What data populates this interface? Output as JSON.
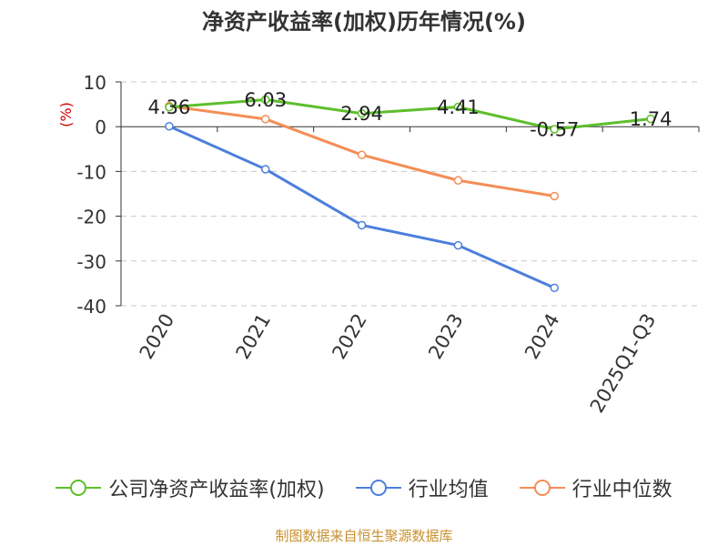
{
  "chart_data": {
    "type": "line",
    "title": "净资产收益率(加权)历年情况(%)",
    "ylabel": "(%)",
    "xlabel": "",
    "categories": [
      "2020",
      "2021",
      "2022",
      "2023",
      "2024",
      "2025Q1-Q3"
    ],
    "ylim": [
      -40,
      10
    ],
    "yticks": [
      10,
      0,
      -10,
      -20,
      -30,
      -40
    ],
    "grid": true,
    "legend_position": "bottom",
    "series": [
      {
        "name": "公司净资产收益率(加权)",
        "color": "#5cbf2a",
        "values": [
          4.36,
          6.03,
          2.94,
          4.41,
          -0.57,
          1.74
        ],
        "labels": [
          "4.36",
          "6.03",
          "2.94",
          "4.41",
          "-0.57",
          "1.74"
        ]
      },
      {
        "name": "行业均值",
        "color": "#4c7fdc",
        "values": [
          0.1,
          -9.5,
          -22.0,
          -26.5,
          -36.0,
          null
        ]
      },
      {
        "name": "行业中位数",
        "color": "#f58d55",
        "values": [
          4.6,
          1.7,
          -6.3,
          -12.0,
          -15.5,
          null
        ]
      }
    ]
  },
  "source_text": "制图数据来自恒生聚源数据库"
}
